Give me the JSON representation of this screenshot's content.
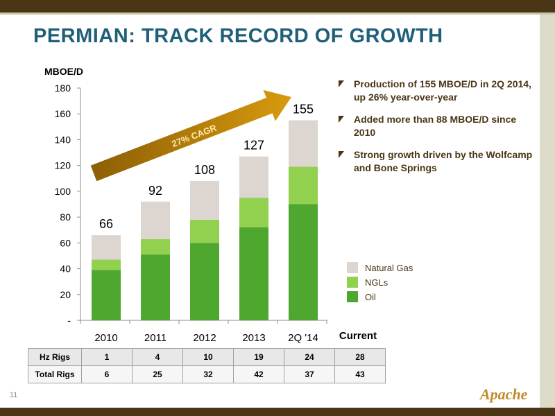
{
  "slide": {
    "title": "PERMIAN: TRACK RECORD OF GROWTH",
    "page_number": "11",
    "logo_text": "Apache",
    "colors": {
      "title": "#1f5f7a",
      "frame": "#4a3514",
      "gas": "#dcd5d0",
      "ngl": "#92d050",
      "oil": "#4ea72e",
      "arrow": "#c8900a"
    }
  },
  "bullets": [
    "Production of 155 MBOE/D in 2Q 2014, up 26% year-over-year",
    "Added more than 88 MBOE/D since 2010",
    "Strong growth driven by the Wolfcamp and Bone Springs"
  ],
  "chart_data": {
    "type": "bar",
    "stacked": true,
    "ylabel": "MBOE/D",
    "ylim": [
      0,
      180
    ],
    "yticks": [
      0,
      20,
      40,
      60,
      80,
      100,
      120,
      140,
      160,
      180
    ],
    "ytick_labels": [
      "-",
      "20",
      "40",
      "60",
      "80",
      "100",
      "120",
      "140",
      "160",
      "180"
    ],
    "categories": [
      "2010",
      "2011",
      "2012",
      "2013",
      "2Q '14"
    ],
    "series": [
      {
        "name": "Oil",
        "values": [
          39,
          51,
          60,
          72,
          90
        ]
      },
      {
        "name": "NGLs",
        "values": [
          8,
          12,
          18,
          23,
          29
        ]
      },
      {
        "name": "Natural Gas",
        "values": [
          19,
          29,
          30,
          32,
          36
        ]
      }
    ],
    "totals": [
      66,
      92,
      108,
      127,
      155
    ],
    "legend_position": "right",
    "annotation": "27% CAGR"
  },
  "table": {
    "header_label": "Current",
    "rows": [
      {
        "label": "Hz Rigs",
        "values": [
          "1",
          "4",
          "10",
          "19",
          "24",
          "28"
        ]
      },
      {
        "label": "Total Rigs",
        "values": [
          "6",
          "25",
          "32",
          "42",
          "37",
          "43"
        ]
      }
    ]
  }
}
